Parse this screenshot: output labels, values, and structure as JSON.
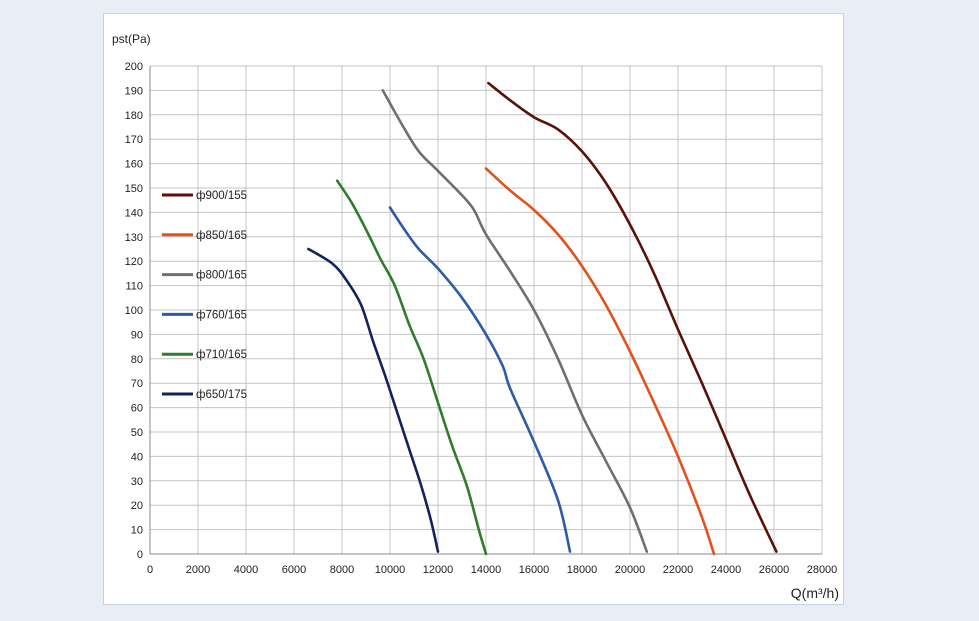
{
  "chart_data": {
    "type": "line",
    "title": "",
    "ylabel": "pst(Pa)",
    "xlabel": "Q(m³/h)",
    "xlim": [
      0,
      28000
    ],
    "ylim": [
      0,
      200
    ],
    "x_ticks": [
      0,
      2000,
      4000,
      6000,
      8000,
      10000,
      12000,
      14000,
      16000,
      18000,
      20000,
      22000,
      24000,
      26000,
      28000
    ],
    "y_ticks": [
      0,
      10,
      20,
      30,
      40,
      50,
      60,
      70,
      80,
      90,
      100,
      110,
      120,
      130,
      140,
      150,
      160,
      170,
      180,
      190,
      200
    ],
    "grid": true,
    "legend_position": "left",
    "series": [
      {
        "name": "ф900/155",
        "color": "#5a1208",
        "points": [
          [
            14100,
            193
          ],
          [
            15000,
            186
          ],
          [
            16000,
            179
          ],
          [
            17000,
            174
          ],
          [
            18000,
            165
          ],
          [
            19000,
            152
          ],
          [
            20000,
            135
          ],
          [
            21000,
            115
          ],
          [
            22000,
            92
          ],
          [
            23000,
            70
          ],
          [
            24000,
            47
          ],
          [
            25000,
            24
          ],
          [
            26100,
            1
          ]
        ]
      },
      {
        "name": "ф850/165",
        "color": "#e0531c",
        "points": [
          [
            14000,
            158
          ],
          [
            15000,
            149
          ],
          [
            16000,
            141
          ],
          [
            17000,
            131
          ],
          [
            18000,
            118
          ],
          [
            19000,
            102
          ],
          [
            20000,
            83
          ],
          [
            21000,
            62
          ],
          [
            22000,
            40
          ],
          [
            23000,
            15
          ],
          [
            23500,
            0
          ]
        ]
      },
      {
        "name": "ф800/165",
        "color": "#6f6f6f",
        "points": [
          [
            9700,
            190
          ],
          [
            10500,
            176
          ],
          [
            11200,
            165
          ],
          [
            12000,
            157
          ],
          [
            13000,
            147
          ],
          [
            13500,
            141
          ],
          [
            14000,
            131
          ],
          [
            15000,
            116
          ],
          [
            16000,
            100
          ],
          [
            17000,
            80
          ],
          [
            18000,
            57
          ],
          [
            19000,
            38
          ],
          [
            20000,
            19
          ],
          [
            20700,
            1
          ]
        ]
      },
      {
        "name": "ф760/165",
        "color": "#2d5ba6",
        "points": [
          [
            10000,
            142
          ],
          [
            10600,
            133
          ],
          [
            11200,
            125
          ],
          [
            12000,
            117
          ],
          [
            13000,
            105
          ],
          [
            14000,
            90
          ],
          [
            14700,
            77
          ],
          [
            15000,
            68
          ],
          [
            16000,
            46
          ],
          [
            17000,
            22
          ],
          [
            17500,
            1
          ]
        ]
      },
      {
        "name": "ф710/165",
        "color": "#2f7d2a",
        "points": [
          [
            7800,
            153
          ],
          [
            8400,
            144
          ],
          [
            9000,
            133
          ],
          [
            9600,
            121
          ],
          [
            10200,
            110
          ],
          [
            10800,
            94
          ],
          [
            11400,
            80
          ],
          [
            12000,
            62
          ],
          [
            12600,
            44
          ],
          [
            13200,
            28
          ],
          [
            13700,
            10
          ],
          [
            14000,
            0
          ]
        ]
      },
      {
        "name": "ф650/175",
        "color": "#13235e",
        "points": [
          [
            6600,
            125
          ],
          [
            7600,
            119
          ],
          [
            8200,
            112
          ],
          [
            8800,
            102
          ],
          [
            9300,
            87
          ],
          [
            9800,
            73
          ],
          [
            10300,
            58
          ],
          [
            10800,
            43
          ],
          [
            11300,
            28
          ],
          [
            11700,
            14
          ],
          [
            12000,
            1
          ]
        ]
      }
    ]
  }
}
